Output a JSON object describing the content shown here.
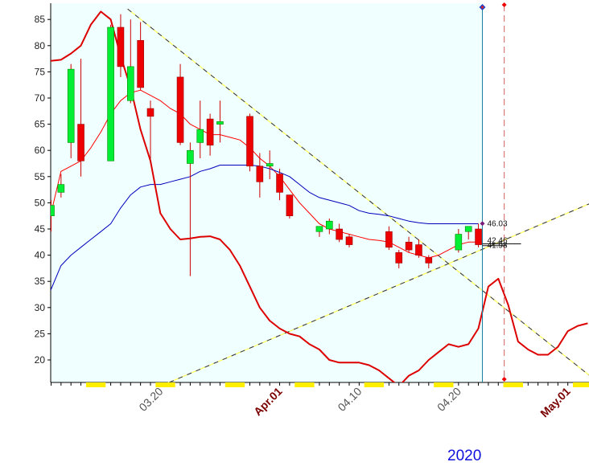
{
  "chart_data": {
    "type": "candlestick",
    "ylim": [
      15,
      87
    ],
    "yticks": [
      20,
      25,
      30,
      35,
      40,
      45,
      50,
      55,
      60,
      65,
      70,
      75,
      80,
      85
    ],
    "x_labels": [
      {
        "text": "03.20",
        "x": 11,
        "month": false
      },
      {
        "text": "Apr.01",
        "x": 23,
        "month": true
      },
      {
        "text": "04.10",
        "x": 31,
        "month": false
      },
      {
        "text": "04.20",
        "x": 41,
        "month": false
      },
      {
        "text": "May.01",
        "x": 52,
        "month": true
      }
    ],
    "year": "2020",
    "candles": [
      {
        "x": 0,
        "o": 47.5,
        "h": 50.5,
        "l": 44.5,
        "c": 49.5
      },
      {
        "x": 1,
        "o": 52,
        "h": 55.5,
        "l": 51,
        "c": 53.5
      },
      {
        "x": 2,
        "o": 61.5,
        "h": 76.5,
        "l": 58.5,
        "c": 75.5
      },
      {
        "x": 3,
        "o": 65,
        "h": 77.5,
        "l": 55,
        "c": 58
      },
      {
        "x": 6,
        "o": 58,
        "h": 84,
        "l": 58,
        "c": 83.5
      },
      {
        "x": 7,
        "o": 83.5,
        "h": 86,
        "l": 74,
        "c": 76
      },
      {
        "x": 8,
        "o": 69.5,
        "h": 85,
        "l": 69,
        "c": 76
      },
      {
        "x": 9,
        "o": 81,
        "h": 84.5,
        "l": 71.5,
        "c": 72
      },
      {
        "x": 10,
        "o": 68,
        "h": 69.5,
        "l": 57.5,
        "c": 66.5
      },
      {
        "x": 13,
        "o": 74,
        "h": 76.5,
        "l": 61,
        "c": 61.5
      },
      {
        "x": 14,
        "o": 57.5,
        "h": 61.5,
        "l": 36,
        "c": 60
      },
      {
        "x": 15,
        "o": 61.5,
        "h": 69.5,
        "l": 58.5,
        "c": 64
      },
      {
        "x": 16,
        "o": 66,
        "h": 67,
        "l": 59,
        "c": 61
      },
      {
        "x": 17,
        "o": 65,
        "h": 69.5,
        "l": 61.5,
        "c": 65.5
      },
      {
        "x": 20,
        "o": 66.5,
        "h": 67,
        "l": 56,
        "c": 57
      },
      {
        "x": 21,
        "o": 57,
        "h": 59.5,
        "l": 51,
        "c": 54
      },
      {
        "x": 22,
        "o": 57,
        "h": 60,
        "l": 54.5,
        "c": 57.5
      },
      {
        "x": 23,
        "o": 55.5,
        "h": 56.5,
        "l": 50.5,
        "c": 52
      },
      {
        "x": 24,
        "o": 51.5,
        "h": 51.5,
        "l": 47,
        "c": 47.5
      },
      {
        "x": 27,
        "o": 44.5,
        "h": 45.5,
        "l": 43.5,
        "c": 45.5
      },
      {
        "x": 28,
        "o": 45,
        "h": 47,
        "l": 44,
        "c": 46.5
      },
      {
        "x": 29,
        "o": 45,
        "h": 46,
        "l": 42.5,
        "c": 43
      },
      {
        "x": 30,
        "o": 43.5,
        "h": 44,
        "l": 41.5,
        "c": 42
      },
      {
        "x": 34,
        "o": 44.5,
        "h": 45.5,
        "l": 41,
        "c": 41.5
      },
      {
        "x": 35,
        "o": 40.5,
        "h": 41,
        "l": 37.5,
        "c": 38.5
      },
      {
        "x": 36,
        "o": 42.5,
        "h": 43.5,
        "l": 40.5,
        "c": 41
      },
      {
        "x": 37,
        "o": 42,
        "h": 43,
        "l": 39.5,
        "c": 40
      },
      {
        "x": 38,
        "o": 39.5,
        "h": 40,
        "l": 37.5,
        "c": 38.5
      },
      {
        "x": 41,
        "o": 41,
        "h": 45,
        "l": 40.5,
        "c": 44
      },
      {
        "x": 42,
        "o": 44.5,
        "h": 45.5,
        "l": 43,
        "c": 45.5
      },
      {
        "x": 43,
        "o": 45,
        "h": 46,
        "l": 41.5,
        "c": 42
      }
    ],
    "series": [
      {
        "color": "#ff0000",
        "width": 1,
        "points": [
          [
            -0.5,
            44
          ],
          [
            1,
            56
          ],
          [
            2,
            57
          ],
          [
            3,
            58
          ],
          [
            4,
            60.5
          ],
          [
            5,
            63.5
          ],
          [
            6,
            67
          ],
          [
            7,
            69.5
          ],
          [
            8,
            71
          ],
          [
            9,
            71.5
          ],
          [
            10,
            70.5
          ],
          [
            11,
            69.5
          ],
          [
            12,
            68
          ],
          [
            13,
            67
          ],
          [
            14,
            65
          ],
          [
            15,
            64
          ],
          [
            16,
            63
          ],
          [
            17,
            63
          ],
          [
            18,
            62.5
          ],
          [
            19,
            62
          ],
          [
            20,
            60.5
          ],
          [
            21,
            58.5
          ],
          [
            22,
            57
          ],
          [
            23,
            55
          ],
          [
            24,
            52.5
          ],
          [
            25,
            50
          ],
          [
            26,
            48
          ],
          [
            27,
            46
          ],
          [
            28,
            45
          ],
          [
            29,
            44.5
          ],
          [
            30,
            44
          ],
          [
            31,
            43.5
          ],
          [
            32,
            43
          ],
          [
            33,
            42.8
          ],
          [
            34,
            42.5
          ],
          [
            35,
            41.5
          ],
          [
            36,
            40.5
          ],
          [
            37,
            40
          ],
          [
            38,
            39.5
          ],
          [
            39,
            40
          ],
          [
            40,
            41
          ],
          [
            41,
            42
          ],
          [
            42,
            42.5
          ],
          [
            43,
            42.5
          ]
        ]
      },
      {
        "color": "#0000bb",
        "width": 1,
        "points": [
          [
            -0.5,
            32
          ],
          [
            0,
            33.5
          ],
          [
            1,
            38
          ],
          [
            2,
            40
          ],
          [
            3,
            41.5
          ],
          [
            4,
            43
          ],
          [
            5,
            44.5
          ],
          [
            6,
            46
          ],
          [
            7,
            49
          ],
          [
            8,
            51.5
          ],
          [
            9,
            53
          ],
          [
            10,
            53.5
          ],
          [
            11,
            53.5
          ],
          [
            12,
            54
          ],
          [
            13,
            54.5
          ],
          [
            14,
            55
          ],
          [
            15,
            56
          ],
          [
            16,
            56.5
          ],
          [
            17,
            57.2
          ],
          [
            18,
            57.2
          ],
          [
            19,
            57.2
          ],
          [
            20,
            57.2
          ],
          [
            21,
            57
          ],
          [
            22,
            56.5
          ],
          [
            23,
            55.8
          ],
          [
            24,
            55
          ],
          [
            25,
            53.5
          ],
          [
            26,
            52
          ],
          [
            27,
            51
          ],
          [
            28,
            50.5
          ],
          [
            29,
            50
          ],
          [
            30,
            49.5
          ],
          [
            31,
            48.5
          ],
          [
            32,
            48
          ],
          [
            33,
            47.8
          ],
          [
            34,
            47.5
          ],
          [
            35,
            47
          ],
          [
            36,
            46.5
          ],
          [
            37,
            46.2
          ],
          [
            38,
            46
          ],
          [
            39,
            46
          ],
          [
            40,
            46
          ],
          [
            41,
            46
          ],
          [
            42,
            46
          ],
          [
            43,
            46
          ]
        ]
      },
      {
        "color": "#dd0000",
        "width": 2,
        "points": [
          [
            -0.5,
            77
          ],
          [
            1,
            77.3
          ],
          [
            2,
            78.5
          ],
          [
            3,
            80
          ],
          [
            4,
            84
          ],
          [
            5,
            86.5
          ],
          [
            6,
            85
          ],
          [
            7,
            78
          ],
          [
            8,
            72
          ],
          [
            9,
            64
          ],
          [
            10,
            58
          ],
          [
            11,
            48
          ],
          [
            12,
            45
          ],
          [
            13,
            43
          ],
          [
            14,
            43.2
          ],
          [
            15,
            43.5
          ],
          [
            16,
            43.6
          ],
          [
            17,
            43
          ],
          [
            18,
            41
          ],
          [
            19,
            38
          ],
          [
            20,
            34
          ],
          [
            21,
            30
          ],
          [
            22,
            27.5
          ],
          [
            23,
            26
          ],
          [
            24,
            25
          ],
          [
            25,
            24.5
          ],
          [
            26,
            23
          ],
          [
            27,
            22
          ],
          [
            28,
            20
          ],
          [
            29,
            19.5
          ],
          [
            30,
            19.5
          ],
          [
            31,
            19.5
          ],
          [
            32,
            19
          ],
          [
            33,
            18
          ],
          [
            34,
            16.5
          ],
          [
            35,
            15
          ],
          [
            36,
            17
          ],
          [
            37,
            18
          ],
          [
            38,
            20
          ],
          [
            39,
            21.5
          ],
          [
            40,
            23
          ],
          [
            41,
            22.5
          ],
          [
            42,
            23
          ],
          [
            43,
            26
          ],
          [
            44,
            34
          ],
          [
            45,
            35.5
          ],
          [
            46,
            30.5
          ],
          [
            47,
            23.5
          ],
          [
            48,
            22
          ],
          [
            49,
            21
          ],
          [
            50,
            21
          ],
          [
            51,
            22.5
          ],
          [
            52,
            25.5
          ],
          [
            53,
            26.5
          ],
          [
            54,
            27
          ]
        ]
      }
    ],
    "trendlines": [
      {
        "color": "#2a2a5a",
        "dash": true,
        "from": [
          7.7,
          87
        ],
        "to": [
          54.2,
          17
        ]
      },
      {
        "color": "#2a2a5a",
        "dash": true,
        "from": [
          11,
          15
        ],
        "to": [
          54.4,
          50
        ]
      }
    ],
    "annotations": [
      "46.03",
      "42.46",
      "41.98"
    ],
    "marker_values": [
      46.03,
      42.46,
      41.98
    ],
    "current_x": 43.4,
    "future_x": 45.6,
    "weekend_spans": [
      [
        4,
        5
      ],
      [
        11,
        12
      ],
      [
        18,
        19
      ],
      [
        25,
        26
      ],
      [
        32,
        33
      ],
      [
        39,
        40
      ],
      [
        46,
        47
      ],
      [
        53,
        54
      ]
    ]
  }
}
